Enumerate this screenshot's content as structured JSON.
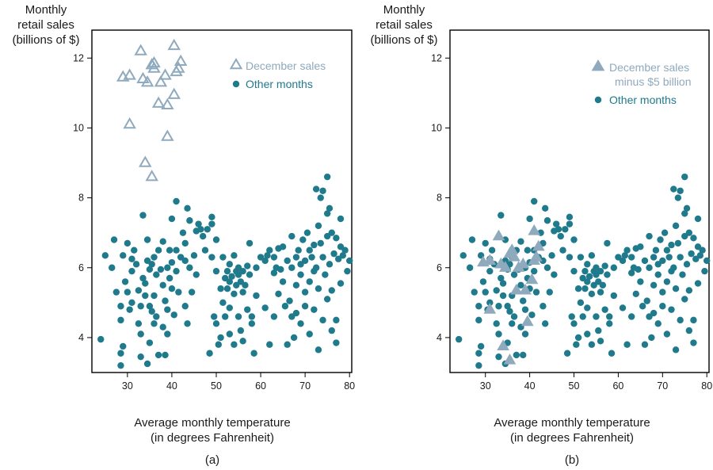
{
  "colors": {
    "dec": "#8fa9bd",
    "other": "#1f7a8c",
    "axis": "#000000"
  },
  "chart_data": [
    {
      "type": "scatter",
      "panel_label": "(a)",
      "ylabel": [
        "Monthly",
        "retail sales",
        "(billions of $)"
      ],
      "xlabel": [
        "Average monthly temperature",
        "(in degrees Fahrenheit)"
      ],
      "xlim": [
        22,
        80.5
      ],
      "ylim": [
        3,
        12.8
      ],
      "xticks": [
        30,
        40,
        50,
        60,
        70,
        80
      ],
      "yticks": [
        4,
        6,
        8,
        10,
        12
      ],
      "legend": {
        "placement": "top-right",
        "entries": [
          "December sales",
          "Other months"
        ]
      },
      "series": [
        {
          "name": "December sales",
          "marker": "open-triangle",
          "points": [
            [
              33,
              12.2
            ],
            [
              40.5,
              12.35
            ],
            [
              29,
              11.45
            ],
            [
              30.5,
              11.5
            ],
            [
              33.5,
              11.4
            ],
            [
              34.5,
              11.3
            ],
            [
              35.5,
              11.8
            ],
            [
              36,
              11.7
            ],
            [
              36,
              11.85
            ],
            [
              37.5,
              11.3
            ],
            [
              38.5,
              11.5
            ],
            [
              41,
              11.6
            ],
            [
              42,
              11.9
            ],
            [
              41.5,
              11.7
            ],
            [
              37,
              10.7
            ],
            [
              39,
              10.65
            ],
            [
              40.5,
              10.95
            ],
            [
              30.5,
              10.1
            ],
            [
              39,
              9.75
            ],
            [
              34,
              9.0
            ],
            [
              35.5,
              8.6
            ]
          ]
        },
        {
          "name": "Other months",
          "marker": "filled-circle",
          "points": []
        }
      ]
    },
    {
      "type": "scatter",
      "panel_label": "(b)",
      "ylabel": [
        "Monthly",
        "retail sales",
        "(billions of $)"
      ],
      "xlabel": [
        "Average monthly temperature",
        "(in degrees Fahrenheit)"
      ],
      "xlim": [
        22,
        80.5
      ],
      "ylim": [
        3,
        12.8
      ],
      "xticks": [
        30,
        40,
        50,
        60,
        70,
        80
      ],
      "yticks": [
        4,
        6,
        8,
        10,
        12
      ],
      "legend": {
        "placement": "top-right",
        "entries": [
          "December sales",
          "minus $5 billion",
          "Other months"
        ]
      },
      "series": [
        {
          "name": "December sales minus $5 billion",
          "marker": "filled-triangle",
          "points": [
            [
              33,
              6.9
            ],
            [
              41,
              7.05
            ],
            [
              29.5,
              6.15
            ],
            [
              31,
              6.2
            ],
            [
              33.5,
              6.1
            ],
            [
              34.5,
              6.0
            ],
            [
              35.5,
              6.4
            ],
            [
              36,
              6.5
            ],
            [
              36.5,
              6.3
            ],
            [
              37.5,
              6.0
            ],
            [
              38.5,
              6.1
            ],
            [
              41,
              6.2
            ],
            [
              42,
              6.6
            ],
            [
              41.5,
              6.3
            ],
            [
              37,
              5.35
            ],
            [
              39,
              5.35
            ],
            [
              40.5,
              5.65
            ],
            [
              31,
              4.8
            ],
            [
              39.5,
              4.45
            ],
            [
              34,
              3.75
            ],
            [
              35.5,
              3.35
            ]
          ]
        },
        {
          "name": "Other months",
          "marker": "filled-circle",
          "points": []
        }
      ]
    }
  ],
  "other_points": [
    [
      24,
      3.95
    ],
    [
      25,
      6.35
    ],
    [
      26.5,
      6.0
    ],
    [
      27,
      6.8
    ],
    [
      27.5,
      5.3
    ],
    [
      28.5,
      4.5
    ],
    [
      28.5,
      4.9
    ],
    [
      28.5,
      3.55
    ],
    [
      28.5,
      3.2
    ],
    [
      29,
      6.35
    ],
    [
      29,
      3.75
    ],
    [
      29.5,
      5.6
    ],
    [
      30,
      6.7
    ],
    [
      30,
      5.3
    ],
    [
      30.5,
      4.8
    ],
    [
      31,
      5.9
    ],
    [
      31,
      6.25
    ],
    [
      31,
      5.0
    ],
    [
      31.5,
      6.5
    ],
    [
      32,
      6.1
    ],
    [
      32.5,
      4.4
    ],
    [
      32.5,
      5.35
    ],
    [
      33,
      4.1
    ],
    [
      33,
      3.45
    ],
    [
      33,
      4.9
    ],
    [
      33.5,
      7.5
    ],
    [
      33.5,
      5.7
    ],
    [
      34,
      5.55
    ],
    [
      34,
      5.2
    ],
    [
      34.5,
      6.8
    ],
    [
      34.5,
      6.2
    ],
    [
      34.5,
      3.25
    ],
    [
      35,
      4.9
    ],
    [
      35,
      3.85
    ],
    [
      35,
      5.95
    ],
    [
      35.5,
      4.75
    ],
    [
      35.5,
      6.1
    ],
    [
      36,
      5.2
    ],
    [
      36,
      6.3
    ],
    [
      36,
      4.4
    ],
    [
      36.5,
      5.8
    ],
    [
      36.5,
      4.6
    ],
    [
      37,
      3.5
    ],
    [
      37,
      6.5
    ],
    [
      37.5,
      5.95
    ],
    [
      38,
      5.5
    ],
    [
      38,
      4.3
    ],
    [
      38,
      6.75
    ],
    [
      38.5,
      5.05
    ],
    [
      38.5,
      3.5
    ],
    [
      39,
      4.1
    ],
    [
      39,
      6.0
    ],
    [
      39,
      4.8
    ],
    [
      39.5,
      5.7
    ],
    [
      39.5,
      6.5
    ],
    [
      40,
      7.4
    ],
    [
      40,
      5.4
    ],
    [
      40,
      6.15
    ],
    [
      40.5,
      4.65
    ],
    [
      41,
      7.9
    ],
    [
      41,
      6.5
    ],
    [
      41,
      5.9
    ],
    [
      41.5,
      5.3
    ],
    [
      42,
      6.3
    ],
    [
      42.5,
      7.0
    ],
    [
      43,
      6.7
    ],
    [
      43,
      6.2
    ],
    [
      43,
      4.9
    ],
    [
      43.5,
      7.7
    ],
    [
      43.5,
      4.4
    ],
    [
      44,
      6.0
    ],
    [
      44,
      7.35
    ],
    [
      44.5,
      5.3
    ],
    [
      45,
      6.35
    ],
    [
      45.5,
      7.05
    ],
    [
      45.5,
      5.8
    ],
    [
      46,
      7.25
    ],
    [
      46.5,
      7.1
    ],
    [
      47,
      6.9
    ],
    [
      47.5,
      6.5
    ],
    [
      48,
      7.1
    ],
    [
      48.5,
      3.55
    ],
    [
      49,
      7.25
    ],
    [
      49,
      7.45
    ],
    [
      49,
      6.3
    ],
    [
      49.5,
      4.6
    ],
    [
      50,
      6.8
    ],
    [
      50,
      5.9
    ],
    [
      50,
      4.4
    ],
    [
      50.5,
      3.8
    ],
    [
      51,
      5.4
    ],
    [
      51,
      4.0
    ],
    [
      51.5,
      6.3
    ],
    [
      51.5,
      5.0
    ],
    [
      52,
      5.7
    ],
    [
      52,
      4.6
    ],
    [
      52.5,
      5.9
    ],
    [
      52.5,
      5.4
    ],
    [
      53,
      6.1
    ],
    [
      53,
      5.6
    ],
    [
      53,
      4.1
    ],
    [
      53,
      4.85
    ],
    [
      53.5,
      5.75
    ],
    [
      54,
      6.35
    ],
    [
      54,
      5.25
    ],
    [
      54,
      3.8
    ],
    [
      54.5,
      5.9
    ],
    [
      54.5,
      5.5
    ],
    [
      55,
      6.0
    ],
    [
      55,
      5.8
    ],
    [
      55,
      4.6
    ],
    [
      55.5,
      5.6
    ],
    [
      55.5,
      4.2
    ],
    [
      56,
      5.9
    ],
    [
      56,
      5.3
    ],
    [
      56,
      3.9
    ],
    [
      56.5,
      5.5
    ],
    [
      57,
      6.05
    ],
    [
      57,
      4.8
    ],
    [
      57.5,
      6.7
    ],
    [
      57.5,
      5.8
    ],
    [
      58,
      4.6
    ],
    [
      58,
      4.4
    ],
    [
      58.5,
      3.55
    ],
    [
      59,
      6.0
    ],
    [
      59,
      5.2
    ],
    [
      60,
      6.3
    ],
    [
      61,
      6.2
    ],
    [
      61,
      4.85
    ],
    [
      61.5,
      6.35
    ],
    [
      62,
      3.8
    ],
    [
      62,
      6.5
    ],
    [
      63,
      6.3
    ],
    [
      63,
      5.85
    ],
    [
      63,
      4.6
    ],
    [
      63.5,
      6.0
    ],
    [
      64,
      6.55
    ],
    [
      64,
      5.25
    ],
    [
      64.5,
      5.95
    ],
    [
      65,
      6.6
    ],
    [
      65,
      5.6
    ],
    [
      65.5,
      4.9
    ],
    [
      66,
      6.2
    ],
    [
      66,
      3.8
    ],
    [
      66.5,
      5.05
    ],
    [
      67,
      6.9
    ],
    [
      67,
      6.0
    ],
    [
      67,
      4.6
    ],
    [
      67.5,
      4.0
    ],
    [
      68,
      6.3
    ],
    [
      68,
      5.5
    ],
    [
      68,
      4.7
    ],
    [
      68.5,
      6.5
    ],
    [
      69,
      6.1
    ],
    [
      69,
      5.8
    ],
    [
      69,
      4.4
    ],
    [
      69.5,
      6.8
    ],
    [
      70,
      6.2
    ],
    [
      70,
      5.3
    ],
    [
      70,
      4.9
    ],
    [
      70.5,
      7.0
    ],
    [
      71,
      6.5
    ],
    [
      71,
      5.6
    ],
    [
      71,
      4.1
    ],
    [
      71.5,
      6.3
    ],
    [
      72,
      6.65
    ],
    [
      72,
      5.9
    ],
    [
      72,
      4.8
    ],
    [
      72.5,
      8.25
    ],
    [
      72.5,
      6.0
    ],
    [
      73,
      7.2
    ],
    [
      73,
      5.4
    ],
    [
      73,
      3.65
    ],
    [
      73.5,
      6.7
    ],
    [
      73.5,
      8.0
    ],
    [
      74,
      8.2
    ],
    [
      74,
      6.3
    ],
    [
      74,
      4.5
    ],
    [
      74.5,
      5.8
    ],
    [
      75,
      8.6
    ],
    [
      75,
      7.55
    ],
    [
      75,
      6.9
    ],
    [
      75,
      5.1
    ],
    [
      75.5,
      7.7
    ],
    [
      75.5,
      6.1
    ],
    [
      76,
      7.0
    ],
    [
      76,
      5.35
    ],
    [
      76,
      4.2
    ],
    [
      76.5,
      6.4
    ],
    [
      77,
      6.85
    ],
    [
      77,
      4.5
    ],
    [
      77,
      3.85
    ],
    [
      77.5,
      6.25
    ],
    [
      78,
      6.6
    ],
    [
      78,
      7.4
    ],
    [
      78,
      5.55
    ],
    [
      78.5,
      6.35
    ],
    [
      79,
      6.5
    ],
    [
      79.5,
      5.9
    ],
    [
      80,
      6.2
    ]
  ]
}
